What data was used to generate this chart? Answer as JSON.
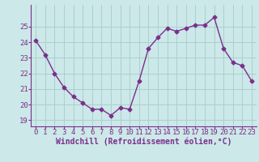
{
  "x": [
    0,
    1,
    2,
    3,
    4,
    5,
    6,
    7,
    8,
    9,
    10,
    11,
    12,
    13,
    14,
    15,
    16,
    17,
    18,
    19,
    20,
    21,
    22,
    23
  ],
  "y": [
    24.1,
    23.2,
    22.0,
    21.1,
    20.5,
    20.1,
    19.7,
    19.7,
    19.3,
    19.8,
    19.7,
    21.5,
    23.6,
    24.3,
    24.9,
    24.7,
    24.9,
    25.1,
    25.1,
    25.6,
    23.6,
    22.7,
    22.5,
    21.5
  ],
  "line_color": "#7B2F8B",
  "marker": "D",
  "marker_size": 2.5,
  "bg_color": "#cce8e8",
  "grid_color": "#aad0d0",
  "xlabel": "Windchill (Refroidissement éolien,°C)",
  "ylim": [
    18.6,
    26.4
  ],
  "xlim": [
    -0.5,
    23.5
  ],
  "yticks": [
    19,
    20,
    21,
    22,
    23,
    24,
    25
  ],
  "xticks": [
    0,
    1,
    2,
    3,
    4,
    5,
    6,
    7,
    8,
    9,
    10,
    11,
    12,
    13,
    14,
    15,
    16,
    17,
    18,
    19,
    20,
    21,
    22,
    23
  ],
  "font_color": "#7B2F8B",
  "tick_fontsize": 6.5,
  "xlabel_fontsize": 7,
  "linewidth": 1.0
}
